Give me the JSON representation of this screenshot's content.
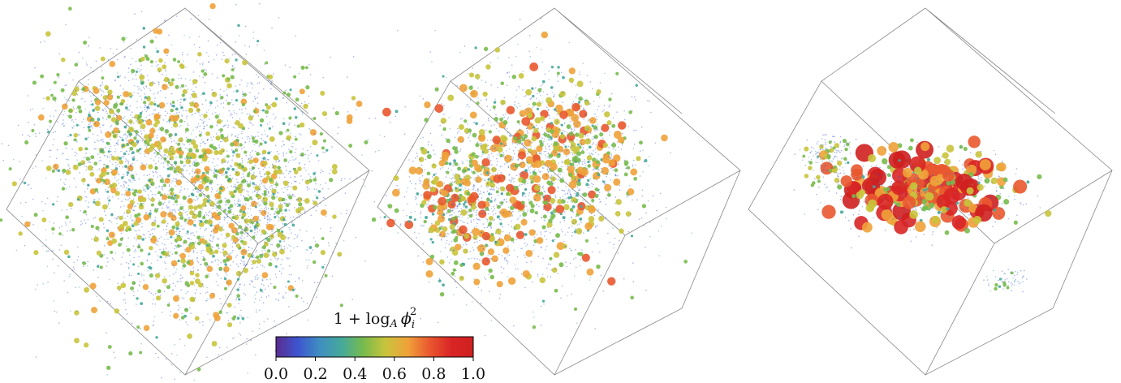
{
  "chart_data": {
    "type": "colorbar",
    "label": {
      "base": "1 + log",
      "base_sub": "A",
      "symbol": "ϕ",
      "symbol_sub": "i",
      "symbol_sup": "2"
    },
    "lim": [
      0,
      1
    ],
    "ticks": [
      {
        "value": 0,
        "label": "0.0"
      },
      {
        "value": 0.2,
        "label": "0.2"
      },
      {
        "value": 0.4,
        "label": "0.4"
      },
      {
        "value": 0.6,
        "label": "0.6"
      },
      {
        "value": 0.8,
        "label": "0.8"
      },
      {
        "value": 1,
        "label": "1.0"
      }
    ],
    "colors": [
      "#5b2c8f",
      "#3d55d0",
      "#3f8fc0",
      "#45a99a",
      "#78bb4c",
      "#c9c43c",
      "#f0a23a",
      "#e9582f",
      "#d92525",
      "#cf1f1f"
    ]
  }
}
